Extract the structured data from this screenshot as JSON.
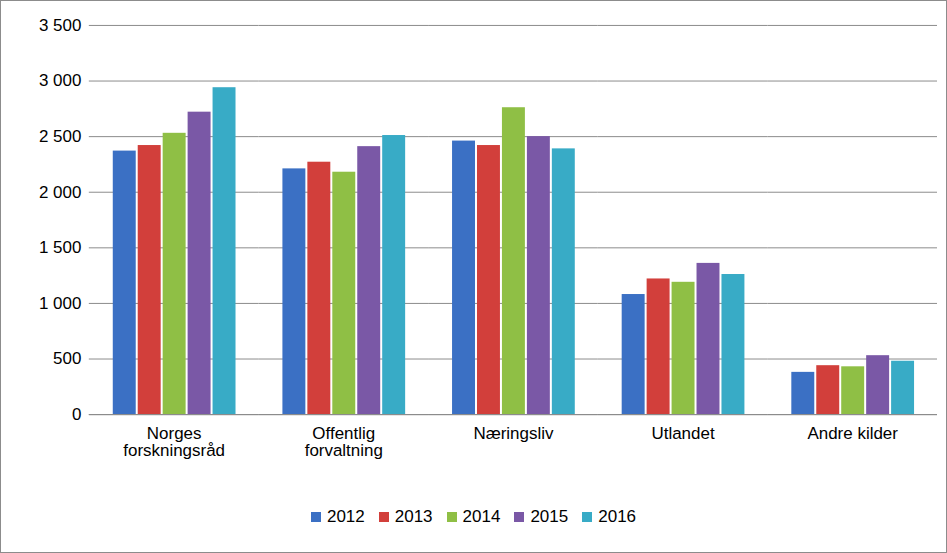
{
  "chart_data": {
    "type": "bar",
    "categories": [
      "Norges forskningsråd",
      "Offentlig forvaltning",
      "Næringsliv",
      "Utlandet",
      "Andre kilder"
    ],
    "series": [
      {
        "name": "2012",
        "color": "#3b70c4",
        "values": [
          2370,
          2210,
          2460,
          1080,
          380
        ]
      },
      {
        "name": "2013",
        "color": "#d23f3b",
        "values": [
          2420,
          2270,
          2420,
          1220,
          440
        ]
      },
      {
        "name": "2014",
        "color": "#8fbf45",
        "values": [
          2530,
          2180,
          2760,
          1190,
          430
        ]
      },
      {
        "name": "2015",
        "color": "#7a58a6",
        "values": [
          2720,
          2410,
          2500,
          1360,
          530
        ]
      },
      {
        "name": "2016",
        "color": "#38abc6",
        "values": [
          2940,
          2510,
          2390,
          1260,
          480
        ]
      }
    ],
    "ylim": [
      0,
      3500
    ],
    "yticks": [
      0,
      500,
      {
        "value": 1000,
        "label": "1 000"
      },
      {
        "value": 1500,
        "label": "1 500"
      },
      {
        "value": 2000,
        "label": "2 000"
      },
      {
        "value": 2500,
        "label": "2 500"
      },
      {
        "value": 3000,
        "label": "3 000"
      },
      {
        "value": 3500,
        "label": "3 500"
      }
    ],
    "grid": true,
    "legend": "bottom"
  }
}
